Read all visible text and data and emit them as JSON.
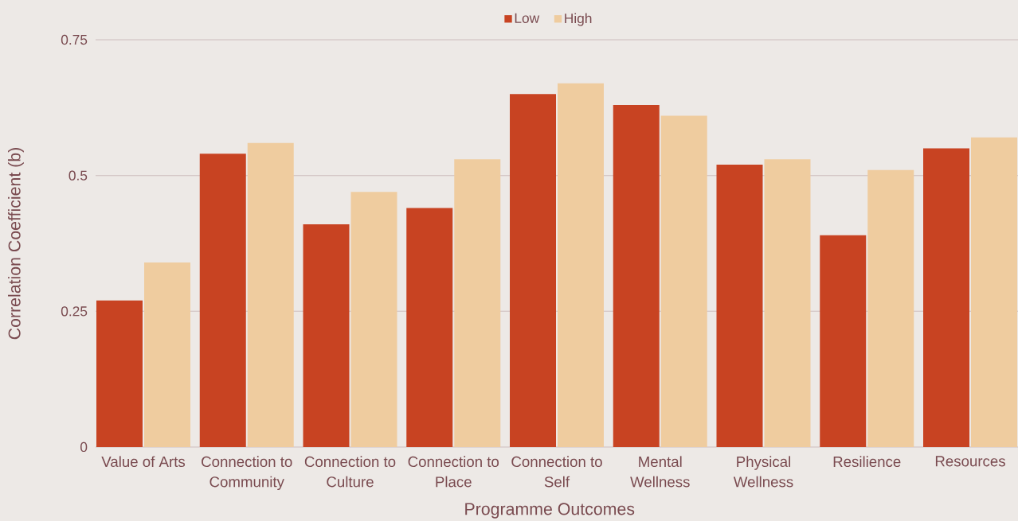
{
  "chart_data": {
    "type": "bar",
    "xlabel": "Programme Outcomes",
    "ylabel": "Correlation Coefficient (b)",
    "categories": [
      "Value of Arts",
      "Connection to Community",
      "Connection to Culture",
      "Connection to Place",
      "Connection to Self",
      "Mental Wellness",
      "Physical Wellness",
      "Resilience",
      "Resources"
    ],
    "series": [
      {
        "name": "Low",
        "color": "#c84322",
        "values": [
          0.27,
          0.54,
          0.41,
          0.44,
          0.65,
          0.63,
          0.52,
          0.39,
          0.55
        ]
      },
      {
        "name": "High",
        "color": "#efcc9f",
        "values": [
          0.34,
          0.56,
          0.47,
          0.53,
          0.67,
          0.61,
          0.53,
          0.51,
          0.57
        ]
      }
    ],
    "ylim": [
      0,
      0.75
    ],
    "yticks": [
      0,
      0.25,
      0.5,
      0.75
    ],
    "grid": "y",
    "legend": "top"
  }
}
